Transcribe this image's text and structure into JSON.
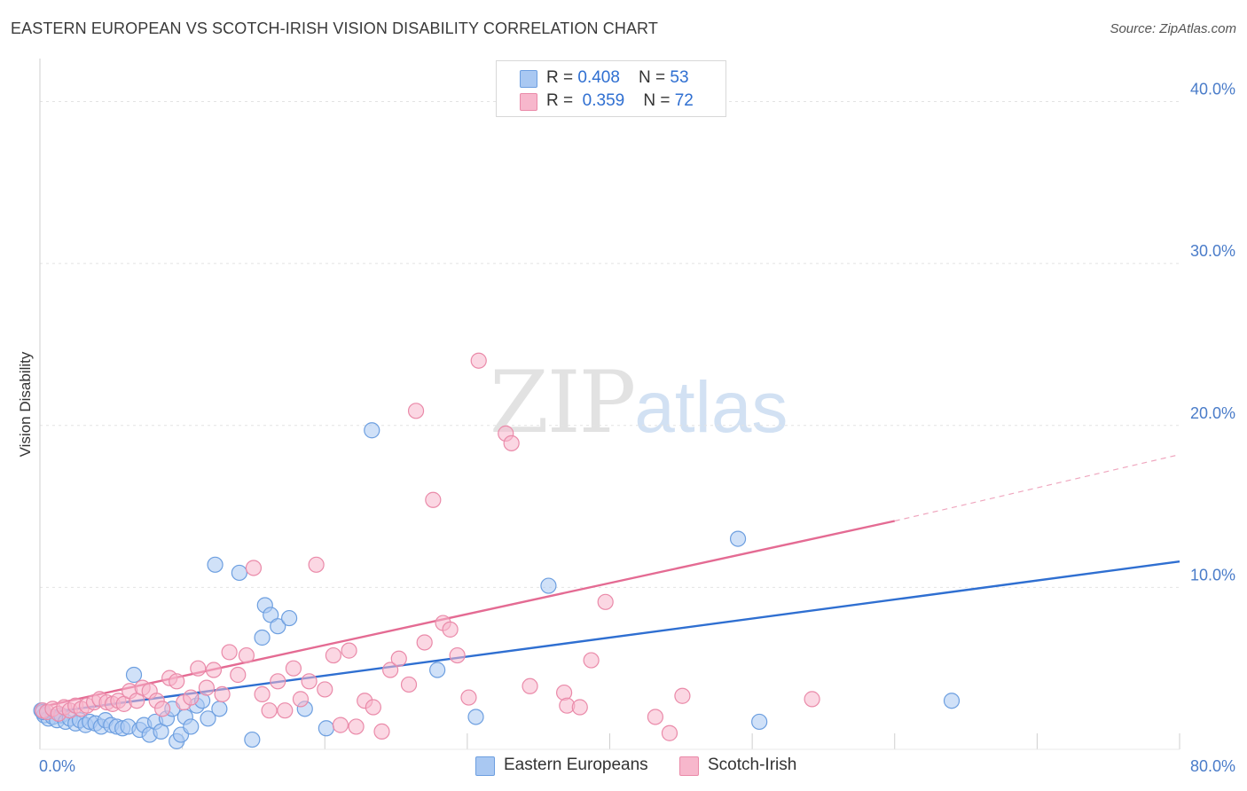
{
  "title": "EASTERN EUROPEAN VS SCOTCH-IRISH VISION DISABILITY CORRELATION CHART",
  "source": "Source: ZipAtlas.com",
  "watermark": {
    "zip": "ZIP",
    "atlas": "atlas"
  },
  "legend": {
    "rows": [
      {
        "r_label": "R = ",
        "r_value": "0.408",
        "n_label": "N = ",
        "n_value": "53",
        "color": "#a9c8f2"
      },
      {
        "r_label": "R = ",
        "r_value": "0.359",
        "n_label": "N = ",
        "n_value": "72",
        "color": "#f7b7cc"
      }
    ]
  },
  "bottom_legend": [
    {
      "label": "Eastern Europeans",
      "color": "#a9c8f2"
    },
    {
      "label": "Scotch-Irish",
      "color": "#f7b7cc"
    }
  ],
  "colors": {
    "blue_fill": "#a9c8f2",
    "blue_stroke": "#6d9fe0",
    "blue_line": "#2f6fd1",
    "pink_fill": "#f7b7cc",
    "pink_stroke": "#ea8aa9",
    "pink_line": "#e46b93",
    "grid": "#e3e3e3",
    "tick_text": "#4a7cc9"
  },
  "chart_data": {
    "type": "scatter",
    "title": "EASTERN EUROPEAN VS SCOTCH-IRISH VISION DISABILITY CORRELATION CHART",
    "xlabel": "",
    "ylabel": "Vision Disability",
    "xlim": [
      0,
      80
    ],
    "ylim": [
      0,
      42
    ],
    "x_tick_labels": [
      {
        "value": 0,
        "label": "0.0%"
      },
      {
        "value": 80,
        "label": "80.0%"
      }
    ],
    "y_tick_labels": [
      {
        "value": 10,
        "label": "10.0%"
      },
      {
        "value": 20,
        "label": "20.0%"
      },
      {
        "value": 30,
        "label": "30.0%"
      },
      {
        "value": 40,
        "label": "40.0%"
      }
    ],
    "grid": true,
    "legend_position": "top-center",
    "series": [
      {
        "name": "Eastern Europeans",
        "R": 0.408,
        "N": 53,
        "trend": {
          "x0": 0,
          "y0": 2.2,
          "x1": 80,
          "y1": 11.6,
          "dashed_from": null
        },
        "points": [
          [
            0.1,
            2.4
          ],
          [
            0.3,
            2.1
          ],
          [
            0.6,
            1.9
          ],
          [
            0.9,
            2.0
          ],
          [
            1.2,
            1.8
          ],
          [
            1.5,
            2.1
          ],
          [
            1.8,
            1.7
          ],
          [
            2.1,
            1.9
          ],
          [
            2.5,
            1.6
          ],
          [
            2.8,
            1.8
          ],
          [
            3.2,
            1.5
          ],
          [
            3.5,
            1.7
          ],
          [
            3.9,
            1.6
          ],
          [
            4.3,
            1.4
          ],
          [
            4.6,
            1.8
          ],
          [
            5.0,
            1.5
          ],
          [
            5.4,
            1.4
          ],
          [
            5.8,
            1.3
          ],
          [
            6.2,
            1.4
          ],
          [
            6.6,
            4.6
          ],
          [
            7.0,
            1.2
          ],
          [
            7.3,
            1.5
          ],
          [
            7.7,
            0.9
          ],
          [
            8.1,
            1.7
          ],
          [
            8.5,
            1.1
          ],
          [
            8.9,
            1.9
          ],
          [
            9.3,
            2.5
          ],
          [
            9.6,
            0.5
          ],
          [
            9.9,
            0.9
          ],
          [
            10.2,
            2.0
          ],
          [
            10.6,
            1.4
          ],
          [
            11.0,
            2.7
          ],
          [
            11.4,
            3.0
          ],
          [
            11.8,
            1.9
          ],
          [
            12.3,
            11.4
          ],
          [
            12.6,
            2.5
          ],
          [
            14.0,
            10.9
          ],
          [
            14.9,
            0.6
          ],
          [
            15.8,
            8.9
          ],
          [
            16.2,
            8.3
          ],
          [
            16.7,
            7.6
          ],
          [
            15.6,
            6.9
          ],
          [
            17.5,
            8.1
          ],
          [
            18.6,
            2.5
          ],
          [
            20.1,
            1.3
          ],
          [
            23.3,
            19.7
          ],
          [
            27.9,
            4.9
          ],
          [
            30.6,
            2.0
          ],
          [
            35.7,
            10.1
          ],
          [
            49.0,
            13.0
          ],
          [
            50.5,
            1.7
          ],
          [
            64.0,
            3.0
          ],
          [
            0.2,
            2.3
          ]
        ]
      },
      {
        "name": "Scotch-Irish",
        "R": 0.359,
        "N": 72,
        "trend": {
          "x0": 0,
          "y0": 2.6,
          "x1": 60,
          "y1": 14.1,
          "dashed_from": 60,
          "dashed_x1": 80,
          "dashed_y1": 18.2
        },
        "points": [
          [
            0.2,
            2.4
          ],
          [
            0.5,
            2.3
          ],
          [
            0.9,
            2.5
          ],
          [
            1.3,
            2.2
          ],
          [
            1.7,
            2.6
          ],
          [
            2.1,
            2.4
          ],
          [
            2.5,
            2.7
          ],
          [
            2.9,
            2.5
          ],
          [
            3.3,
            2.7
          ],
          [
            3.8,
            2.9
          ],
          [
            4.2,
            3.1
          ],
          [
            4.7,
            2.9
          ],
          [
            5.1,
            2.8
          ],
          [
            5.5,
            3.0
          ],
          [
            5.9,
            2.8
          ],
          [
            6.3,
            3.6
          ],
          [
            6.8,
            3.0
          ],
          [
            7.2,
            3.8
          ],
          [
            7.7,
            3.6
          ],
          [
            8.2,
            3.0
          ],
          [
            8.6,
            2.5
          ],
          [
            9.1,
            4.4
          ],
          [
            9.6,
            4.2
          ],
          [
            10.1,
            2.9
          ],
          [
            10.6,
            3.2
          ],
          [
            11.1,
            5.0
          ],
          [
            11.7,
            3.8
          ],
          [
            12.2,
            4.9
          ],
          [
            12.8,
            3.4
          ],
          [
            13.3,
            6.0
          ],
          [
            13.9,
            4.6
          ],
          [
            14.5,
            5.8
          ],
          [
            15.0,
            11.2
          ],
          [
            15.6,
            3.4
          ],
          [
            16.1,
            2.4
          ],
          [
            16.7,
            4.2
          ],
          [
            17.2,
            2.4
          ],
          [
            17.8,
            5.0
          ],
          [
            18.3,
            3.1
          ],
          [
            18.9,
            4.2
          ],
          [
            19.4,
            11.4
          ],
          [
            20.0,
            3.7
          ],
          [
            20.6,
            5.8
          ],
          [
            21.1,
            1.5
          ],
          [
            21.7,
            6.1
          ],
          [
            22.2,
            1.4
          ],
          [
            22.8,
            3.0
          ],
          [
            23.4,
            2.6
          ],
          [
            24.0,
            1.1
          ],
          [
            24.6,
            4.9
          ],
          [
            25.2,
            5.6
          ],
          [
            25.9,
            4.0
          ],
          [
            26.4,
            20.9
          ],
          [
            27.0,
            6.6
          ],
          [
            27.6,
            15.4
          ],
          [
            28.3,
            7.8
          ],
          [
            28.8,
            7.4
          ],
          [
            29.3,
            5.8
          ],
          [
            30.1,
            3.2
          ],
          [
            30.8,
            24.0
          ],
          [
            32.7,
            19.5
          ],
          [
            33.1,
            18.9
          ],
          [
            34.4,
            3.9
          ],
          [
            36.8,
            3.5
          ],
          [
            37.0,
            2.7
          ],
          [
            37.9,
            2.6
          ],
          [
            38.7,
            5.5
          ],
          [
            39.7,
            9.1
          ],
          [
            43.2,
            2.0
          ],
          [
            44.2,
            1.0
          ],
          [
            45.1,
            3.3
          ],
          [
            54.2,
            3.1
          ]
        ]
      }
    ]
  }
}
